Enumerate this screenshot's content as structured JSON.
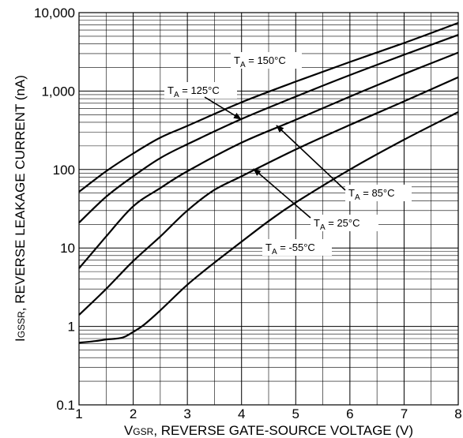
{
  "chart_data": {
    "type": "line",
    "x_axis": {
      "label_main": "V",
      "label_sub": "GSR",
      "label_rest": ", REVERSE GATE-SOURCE VOLTAGE (V)",
      "range": [
        1,
        8
      ],
      "tick_values": [
        1,
        2,
        3,
        4,
        5,
        6,
        7,
        8
      ],
      "tick_labels": [
        "1",
        "2",
        "3",
        "4",
        "5",
        "6",
        "7",
        "8"
      ]
    },
    "y_axis": {
      "label_main": "I",
      "label_sub": "GSSR",
      "label_rest": ", REVERSE LEAKAGE CURRENT (nA)",
      "scale": "log",
      "range": [
        0.1,
        10000
      ],
      "tick_values": [
        0.1,
        1,
        10,
        100,
        1000,
        10000
      ],
      "tick_labels": [
        "0.1",
        "1",
        "10",
        "100",
        "1,000",
        "10,000"
      ]
    },
    "grid": true,
    "series": [
      {
        "name": "T_A = 150°C",
        "x": [
          1,
          1.5,
          2,
          2.5,
          3,
          4,
          5,
          6,
          7,
          8
        ],
        "y": [
          52,
          95,
          160,
          255,
          360,
          720,
          1320,
          2350,
          4100,
          7400
        ]
      },
      {
        "name": "T_A = 125°C",
        "x": [
          1,
          1.5,
          2,
          2.5,
          3,
          4,
          5,
          6,
          7,
          8
        ],
        "y": [
          21,
          45,
          82,
          140,
          210,
          440,
          850,
          1600,
          2900,
          5200
        ]
      },
      {
        "name": "T_A = 85°C",
        "x": [
          1,
          1.5,
          2,
          2.5,
          3,
          4,
          5,
          6,
          7,
          8
        ],
        "y": [
          5.5,
          14,
          34,
          58,
          95,
          220,
          430,
          850,
          1650,
          3100
        ]
      },
      {
        "name": "T_A = 25°C",
        "x": [
          1,
          1.5,
          2,
          2.5,
          3,
          3.5,
          4,
          5,
          6,
          7,
          8
        ],
        "y": [
          1.4,
          3,
          6.8,
          14,
          30,
          55,
          82,
          180,
          370,
          740,
          1500
        ]
      },
      {
        "name": "T_A = -55°C",
        "x": [
          1,
          1.3,
          1.5,
          1.8,
          2,
          2.2,
          2.5,
          3,
          3.5,
          4,
          4.5,
          5,
          6,
          7,
          8
        ],
        "y": [
          0.62,
          0.65,
          0.68,
          0.72,
          0.85,
          1.05,
          1.6,
          3.4,
          6.5,
          12,
          22,
          38,
          100,
          240,
          540
        ]
      }
    ],
    "annotations": [
      {
        "series": 0,
        "label": "T",
        "sub": "A",
        "rest": " = 150°C"
      },
      {
        "series": 1,
        "label": "T",
        "sub": "A",
        "rest": " = 125°C"
      },
      {
        "series": 2,
        "label": "T",
        "sub": "A",
        "rest": " = 85°C"
      },
      {
        "series": 3,
        "label": "T",
        "sub": "A",
        "rest": " = 25°C"
      },
      {
        "series": 4,
        "label": "T",
        "sub": "A",
        "rest": " = -55°C"
      }
    ]
  }
}
